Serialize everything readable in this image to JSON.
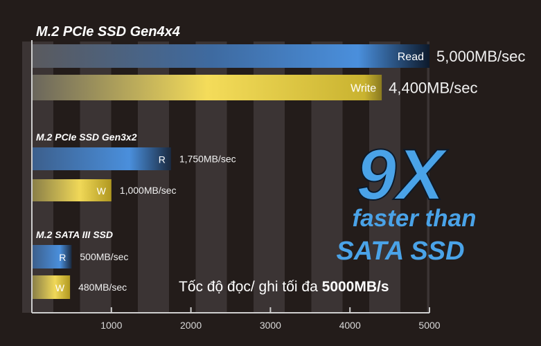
{
  "chart_data": {
    "type": "bar",
    "orientation": "horizontal",
    "xlim": [
      0,
      5000
    ],
    "xticks": [
      1000,
      2000,
      3000,
      4000,
      5000
    ],
    "grid": "alternating vertical bands",
    "groups": [
      {
        "title": "M.2 PCIe SSD Gen4x4",
        "bars": [
          {
            "name": "Read",
            "value": 5000,
            "label": "5,000MB/sec",
            "color": "#4a8fdc"
          },
          {
            "name": "Write",
            "value": 4400,
            "label": "4,400MB/sec",
            "color": "#f4dc5a"
          }
        ]
      },
      {
        "title": "M.2 PCIe SSD Gen3x2",
        "bars": [
          {
            "name": "R",
            "value": 1750,
            "label": "1,750MB/sec",
            "color": "#4a8fdc"
          },
          {
            "name": "W",
            "value": 1000,
            "label": "1,000MB/sec",
            "color": "#f4dc5a"
          }
        ]
      },
      {
        "title": "M.2 SATA III SSD",
        "bars": [
          {
            "name": "R",
            "value": 500,
            "label": "500MB/sec",
            "color": "#4a8fdc"
          },
          {
            "name": "W",
            "value": 480,
            "label": "480MB/sec",
            "color": "#f4dc5a"
          }
        ]
      }
    ],
    "annotations": {
      "big": "9X",
      "line1": "faster than",
      "line2": "SATA SSD",
      "accent": "#4aa3e8"
    },
    "caption": {
      "text": "Tốc độ đọc/ ghi tối đa ",
      "bold": "5000MB/s"
    }
  }
}
